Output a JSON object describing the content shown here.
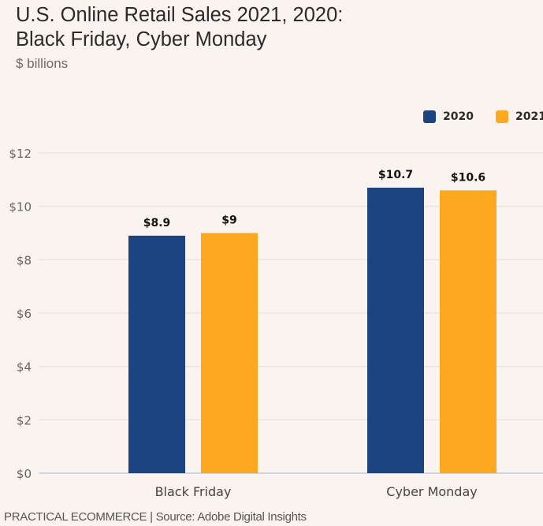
{
  "chart_data": {
    "type": "bar",
    "title": "U.S. Online Retail Sales 2021, 2020:\nBlack Friday, Cyber Monday",
    "subtitle": "$ billions",
    "xlabel": "",
    "ylabel": "",
    "categories": [
      "Black Friday",
      "Cyber Monday"
    ],
    "series": [
      {
        "name": "2020",
        "color": "#1c4480",
        "values": [
          8.9,
          10.7
        ],
        "labels": [
          "$8.9",
          "$10.7"
        ]
      },
      {
        "name": "2021",
        "color": "#fda920",
        "values": [
          9,
          10.6
        ],
        "labels": [
          "$9",
          "$10.6"
        ]
      }
    ],
    "ylim": [
      0,
      12
    ],
    "yticks": [
      0,
      2,
      4,
      6,
      8,
      10,
      12
    ],
    "ytick_labels": [
      "$0",
      "$2",
      "$4",
      "$6",
      "$8",
      "$10",
      "$12"
    ],
    "grid": true,
    "legend_position": "top-right"
  },
  "footer": "PRACTICAL ECOMMERCE | Source: Adobe Digital Insights"
}
